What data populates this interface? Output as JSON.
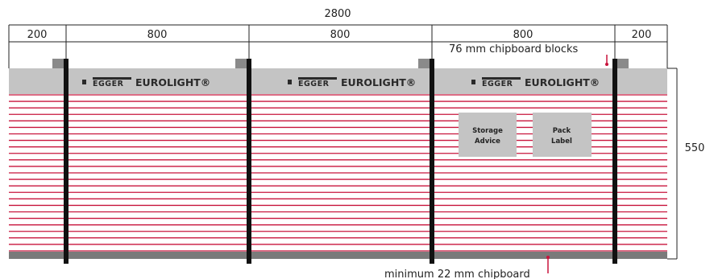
{
  "dimensions": {
    "total_width": "2800",
    "segments": [
      "200",
      "800",
      "800",
      "800",
      "200"
    ],
    "height": "550"
  },
  "annotations": {
    "blocks_note": "76 mm chipboard blocks",
    "base_note": "minimum 22 mm chipboard"
  },
  "branding": {
    "egger": "EGGER",
    "product": "EUROLIGHT®",
    "count": 3
  },
  "labels": {
    "storage": [
      "Storage",
      "Advice"
    ],
    "pack": [
      "Pack",
      "Label"
    ]
  },
  "colors": {
    "board_lines": "#c8143c",
    "top_band": "#c4c4c4",
    "base_band": "#7a7a7a",
    "block": "#8a8a8a",
    "strap": "#111111",
    "arrow": "#c8143c",
    "label_box": "#c4c4c4"
  },
  "panel_count": 24
}
